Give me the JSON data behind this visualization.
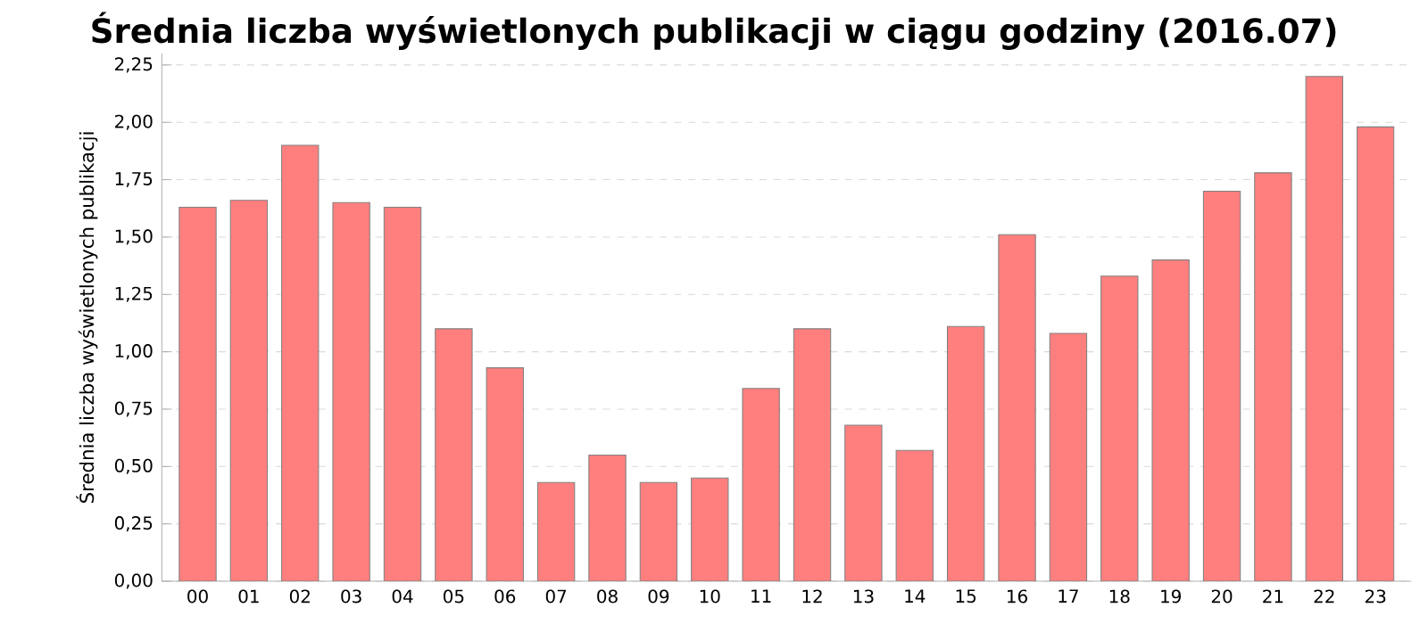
{
  "chart_data": {
    "type": "bar",
    "title": "Średnia liczba wyświetlonych publikacji w ciągu godziny (2016.07)",
    "ylabel": "Średnia liczba wyświetlonych publikacji",
    "categories": [
      "00",
      "01",
      "02",
      "03",
      "04",
      "05",
      "06",
      "07",
      "08",
      "09",
      "10",
      "11",
      "12",
      "13",
      "14",
      "15",
      "16",
      "17",
      "18",
      "19",
      "20",
      "21",
      "22",
      "23"
    ],
    "values": [
      1.63,
      1.66,
      1.9,
      1.65,
      1.63,
      1.1,
      0.93,
      0.43,
      0.55,
      0.43,
      0.45,
      0.84,
      1.1,
      0.68,
      0.57,
      1.11,
      1.51,
      1.08,
      1.33,
      1.4,
      1.7,
      1.78,
      2.2,
      1.98
    ],
    "color": "#ff7f7f",
    "ylim": [
      0,
      2.3
    ],
    "yticks": [
      {
        "value": 0,
        "label": "0,00"
      },
      {
        "value": 0.25,
        "label": "0,25"
      },
      {
        "value": 0.5,
        "label": "0,50"
      },
      {
        "value": 0.75,
        "label": "0,75"
      },
      {
        "value": 1,
        "label": "1,00"
      },
      {
        "value": 1.25,
        "label": "1,25"
      },
      {
        "value": 1.5,
        "label": "1,50"
      },
      {
        "value": 1.75,
        "label": "1,75"
      },
      {
        "value": 2,
        "label": "2,00"
      },
      {
        "value": 2.25,
        "label": "2,25"
      }
    ],
    "grid": "y"
  }
}
